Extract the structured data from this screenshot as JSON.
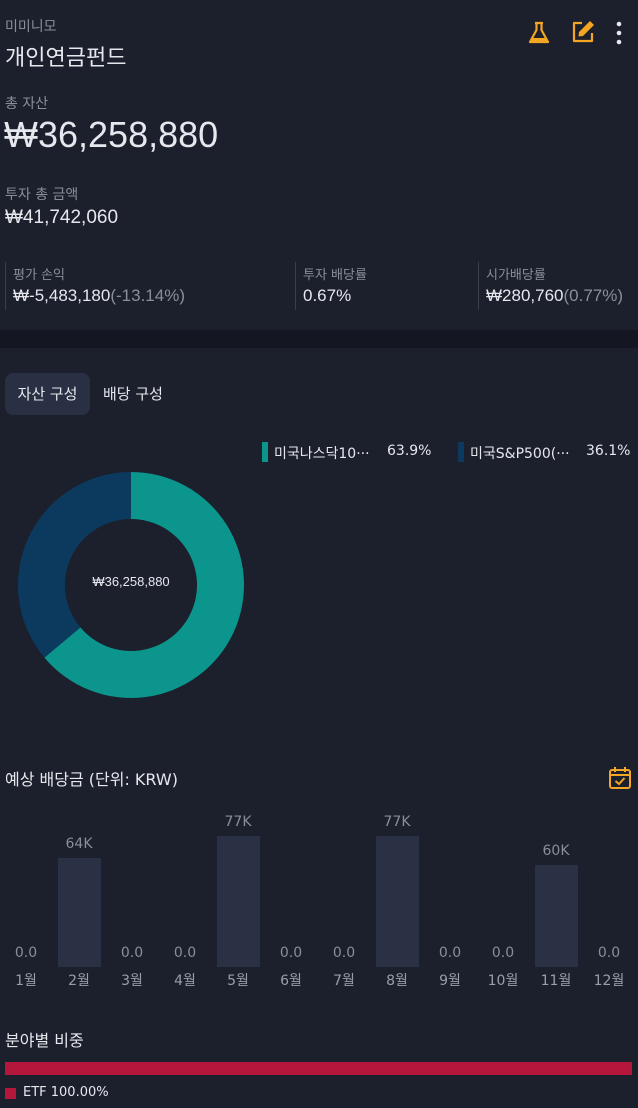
{
  "header": {
    "subtitle": "미미니모",
    "title": "개인연금펀드",
    "icons": [
      "flask-icon",
      "edit-icon",
      "more-vertical-icon"
    ]
  },
  "summary": {
    "total_assets_label": "총 자산",
    "total_assets_value": "₩36,258,880",
    "invested_label": "투자 총 금액",
    "invested_value": "₩41,742,060",
    "stats": [
      {
        "label": "평가 손익",
        "value": "₩-5,483,180",
        "sub": "(-13.14%)"
      },
      {
        "label": "투자 배당률",
        "value": "0.67%",
        "sub": ""
      },
      {
        "label": "시가배당률",
        "value": "₩280,760",
        "sub": "(0.77%)"
      }
    ]
  },
  "tabs": [
    {
      "label": "자산 구성",
      "active": true
    },
    {
      "label": "배당 구성",
      "active": false
    }
  ],
  "composition": {
    "center_label": "₩36,258,880",
    "legend": [
      {
        "name": "미국나스닥10···",
        "percent": "63.9%",
        "color": "#0c958d"
      },
      {
        "name": "미국S&P500(···",
        "percent": "36.1%",
        "color": "#0b3a5e"
      }
    ]
  },
  "chart_data": {
    "type": "bar",
    "title": "예상 배당금 (단위: KRW)",
    "categories": [
      "1월",
      "2월",
      "3월",
      "4월",
      "5월",
      "6월",
      "7월",
      "8월",
      "9월",
      "10월",
      "11월",
      "12월"
    ],
    "values": [
      0,
      64000,
      0,
      0,
      77000,
      0,
      0,
      77000,
      0,
      0,
      60000,
      0
    ],
    "value_labels": [
      "0.0",
      "64K",
      "0.0",
      "0.0",
      "77K",
      "0.0",
      "0.0",
      "77K",
      "0.0",
      "0.0",
      "60K",
      "0.0"
    ]
  },
  "sector": {
    "title": "분야별 비중",
    "items": [
      {
        "label": "ETF 100.00%",
        "value": 100,
        "color": "#b5173c"
      }
    ]
  },
  "colors": {
    "accent_icon": "#f2a623",
    "background": "#1c1f2c"
  }
}
